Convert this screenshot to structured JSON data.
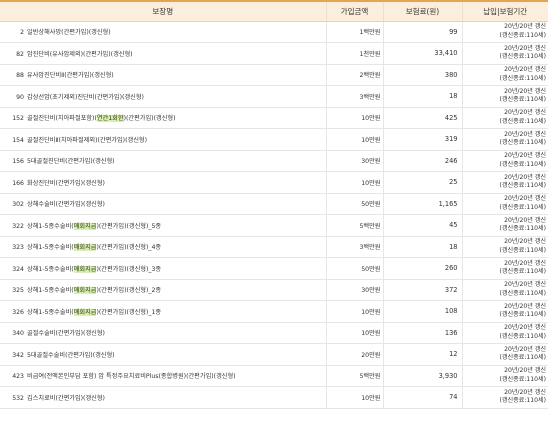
{
  "header": {
    "col_name": "보장명",
    "col_amount": "가입금액",
    "col_premium": "보험료(원)",
    "col_period": "납입|보험기간"
  },
  "rows": [
    {
      "code": "2",
      "pre": "일반상해사망(간편가입)(갱신형)",
      "hl": "",
      "post": "",
      "amount": "1백만원",
      "premium": "99",
      "period1": "20년/20년 갱신",
      "period2": "(갱신종료:110세)"
    },
    {
      "code": "82",
      "pre": "암진단비(유사암제외)(간편가입)(갱신형)",
      "hl": "",
      "post": "",
      "amount": "1천만원",
      "premium": "33,410",
      "period1": "20년/20년 갱신",
      "period2": "(갱신종료:110세)"
    },
    {
      "code": "88",
      "pre": "유사암진단비Ⅱ(간편가입)(갱신형)",
      "hl": "",
      "post": "",
      "amount": "2백만원",
      "premium": "380",
      "period1": "20년/20년 갱신",
      "period2": "(갱신종료:110세)"
    },
    {
      "code": "90",
      "pre": "갑상선암(초기제외)진단비(간편가입)(갱신형)",
      "hl": "",
      "post": "",
      "amount": "3백만원",
      "premium": "18",
      "period1": "20년/20년 갱신",
      "period2": "(갱신종료:110세)"
    },
    {
      "code": "152",
      "pre": "골절진단비(치아파절포함)(",
      "hl": "연간1회한",
      "post": ")(간편가입)(갱신형)",
      "amount": "10만원",
      "premium": "425",
      "period1": "20년/20년 갱신",
      "period2": "(갱신종료:110세)"
    },
    {
      "code": "154",
      "pre": "골절진단비Ⅱ(치아파절제외)(간편가입)(갱신형)",
      "hl": "",
      "post": "",
      "amount": "10만원",
      "premium": "319",
      "period1": "20년/20년 갱신",
      "period2": "(갱신종료:110세)"
    },
    {
      "code": "156",
      "pre": "5대골절진단비(간편가입)(갱신형)",
      "hl": "",
      "post": "",
      "amount": "30만원",
      "premium": "246",
      "period1": "20년/20년 갱신",
      "period2": "(갱신종료:110세)"
    },
    {
      "code": "166",
      "pre": "화상진단비(간편가입)(갱신형)",
      "hl": "",
      "post": "",
      "amount": "10만원",
      "premium": "25",
      "period1": "20년/20년 갱신",
      "period2": "(갱신종료:110세)"
    },
    {
      "code": "302",
      "pre": "상해수술비(간편가입)(갱신형)",
      "hl": "",
      "post": "",
      "amount": "50만원",
      "premium": "1,165",
      "period1": "20년/20년 갱신",
      "period2": "(갱신종료:110세)"
    },
    {
      "code": "322",
      "pre": "상해1-5종수술비(",
      "hl": "매회지급",
      "post": ")(간편가입)(갱신형)_5종",
      "amount": "5백만원",
      "premium": "45",
      "period1": "20년/20년 갱신",
      "period2": "(갱신종료:110세)"
    },
    {
      "code": "323",
      "pre": "상해1-5종수술비(",
      "hl": "매회지급",
      "post": ")(간편가입)(갱신형)_4종",
      "amount": "3백만원",
      "premium": "18",
      "period1": "20년/20년 갱신",
      "period2": "(갱신종료:110세)"
    },
    {
      "code": "324",
      "pre": "상해1-5종수술비(",
      "hl": "매회지급",
      "post": ")(간편가입)(갱신형)_3종",
      "amount": "50만원",
      "premium": "260",
      "period1": "20년/20년 갱신",
      "period2": "(갱신종료:110세)"
    },
    {
      "code": "325",
      "pre": "상해1-5종수술비(",
      "hl": "매회지급",
      "post": ")(간편가입)(갱신형)_2종",
      "amount": "30만원",
      "premium": "372",
      "period1": "20년/20년 갱신",
      "period2": "(갱신종료:110세)"
    },
    {
      "code": "326",
      "pre": "상해1-5종수술비(",
      "hl": "매회지급",
      "post": ")(간편가입)(갱신형)_1종",
      "amount": "10만원",
      "premium": "108",
      "period1": "20년/20년 갱신",
      "period2": "(갱신종료:110세)"
    },
    {
      "code": "340",
      "pre": "골절수술비(간편가입)(갱신형)",
      "hl": "",
      "post": "",
      "amount": "10만원",
      "premium": "136",
      "period1": "20년/20년 갱신",
      "period2": "(갱신종료:110세)"
    },
    {
      "code": "342",
      "pre": "5대골절수술비(간편가입)(갱신형)",
      "hl": "",
      "post": "",
      "amount": "20만원",
      "premium": "12",
      "period1": "20년/20년 갱신",
      "period2": "(갱신종료:110세)"
    },
    {
      "code": "423",
      "pre": "비급여(전액본인부담 포함) 암 특정주요치료비Plus(종합병원)(간편가입)(갱신형)",
      "hl": "",
      "post": "",
      "amount": "5백만원",
      "premium": "3,930",
      "period1": "20년/20년 갱신",
      "period2": "(갱신종료:110세)"
    },
    {
      "code": "532",
      "pre": "깁스치료비(간편가입)(갱신형)",
      "hl": "",
      "post": "",
      "amount": "10만원",
      "premium": "74",
      "period1": "20년/20년 갱신",
      "period2": "(갱신종료:110세)"
    }
  ]
}
